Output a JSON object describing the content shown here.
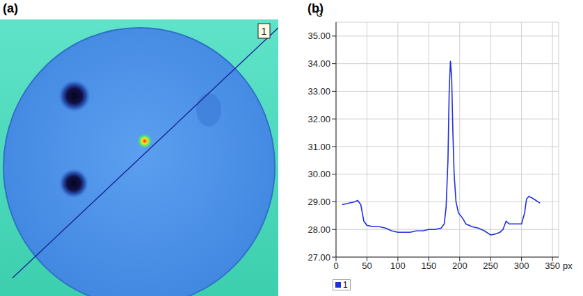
{
  "image_panel": {
    "panel_label": "(a)",
    "profile_label": "1"
  },
  "chart_data": {
    "panel_label": "(b)",
    "type": "line",
    "x_label": "px",
    "y_label": "°C",
    "x": [
      10,
      20,
      30,
      35,
      40,
      45,
      50,
      60,
      70,
      80,
      90,
      100,
      110,
      120,
      130,
      140,
      150,
      160,
      170,
      175,
      178,
      181,
      183,
      185,
      187,
      189,
      191,
      194,
      198,
      205,
      210,
      220,
      230,
      240,
      250,
      260,
      265,
      270,
      275,
      280,
      290,
      300,
      305,
      308,
      312,
      320,
      330
    ],
    "series": [
      {
        "name": "1",
        "color": "#1f2ee0",
        "values": [
          28.9,
          28.95,
          29.0,
          29.05,
          28.9,
          28.3,
          28.15,
          28.1,
          28.1,
          28.05,
          27.95,
          27.9,
          27.9,
          27.9,
          27.95,
          27.95,
          28.0,
          28.0,
          28.05,
          28.2,
          28.8,
          30.5,
          33.0,
          34.1,
          33.5,
          31.5,
          30.0,
          29.0,
          28.6,
          28.4,
          28.2,
          28.1,
          28.05,
          27.95,
          27.8,
          27.85,
          27.9,
          28.0,
          28.3,
          28.2,
          28.2,
          28.2,
          28.6,
          29.1,
          29.2,
          29.1,
          28.95
        ]
      }
    ],
    "xlim": [
      0,
      360
    ],
    "xticks": [
      0,
      50,
      100,
      150,
      200,
      250,
      300,
      350
    ],
    "ylim": [
      27,
      35.5
    ],
    "yticks": [
      {
        "value": 27,
        "label": "27.00"
      },
      {
        "value": 28,
        "label": "28.00"
      },
      {
        "value": 29,
        "label": "29.00"
      },
      {
        "value": 30,
        "label": "30.00"
      },
      {
        "value": 31,
        "label": "31.00"
      },
      {
        "value": 32,
        "label": "32.00"
      },
      {
        "value": 33,
        "label": "33.00"
      },
      {
        "value": 34,
        "label": "34.00"
      },
      {
        "value": 35,
        "label": "35.00"
      }
    ],
    "grid": true,
    "legend": "bottom"
  }
}
